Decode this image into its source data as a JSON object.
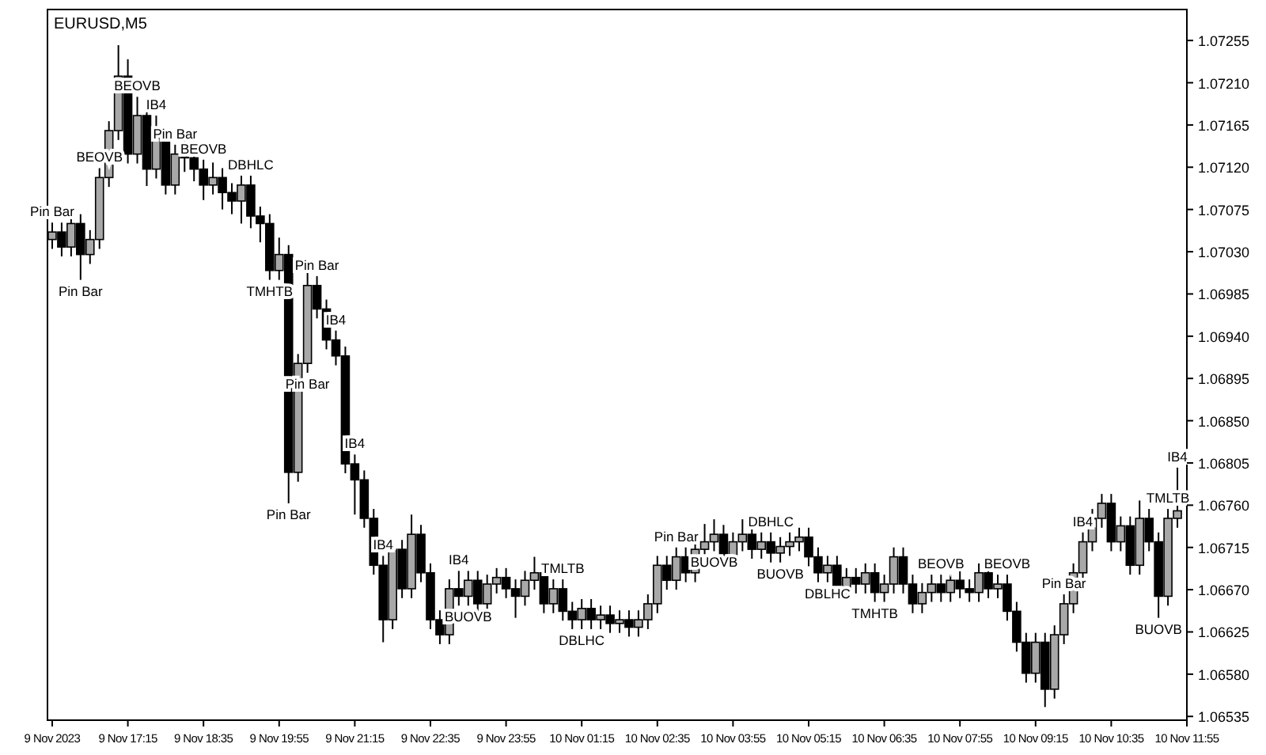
{
  "chart_data": {
    "type": "candlestick",
    "title": "EURUSD,M5",
    "x": [
      "2023-11-09T15:55",
      "2023-11-09T16:05",
      "2023-11-09T16:15",
      "2023-11-09T16:25",
      "2023-11-09T16:35",
      "2023-11-09T16:45",
      "2023-11-09T16:55",
      "2023-11-09T17:05",
      "2023-11-09T17:15",
      "2023-11-09T17:25",
      "2023-11-09T17:35",
      "2023-11-09T17:45",
      "2023-11-09T17:55",
      "2023-11-09T18:05",
      "2023-11-09T18:15",
      "2023-11-09T18:25",
      "2023-11-09T18:35",
      "2023-11-09T18:45",
      "2023-11-09T18:55",
      "2023-11-09T19:05",
      "2023-11-09T19:15",
      "2023-11-09T19:25",
      "2023-11-09T19:35",
      "2023-11-09T19:45",
      "2023-11-09T19:55",
      "2023-11-09T20:05",
      "2023-11-09T20:15",
      "2023-11-09T20:25",
      "2023-11-09T20:35",
      "2023-11-09T20:45",
      "2023-11-09T20:55",
      "2023-11-09T21:05",
      "2023-11-09T21:15",
      "2023-11-09T21:25",
      "2023-11-09T21:35",
      "2023-11-09T21:45",
      "2023-11-09T21:55",
      "2023-11-09T22:05",
      "2023-11-09T22:15",
      "2023-11-09T22:25",
      "2023-11-09T22:35",
      "2023-11-09T22:45",
      "2023-11-09T22:55",
      "2023-11-09T23:05",
      "2023-11-09T23:15",
      "2023-11-09T23:25",
      "2023-11-09T23:35",
      "2023-11-09T23:45",
      "2023-11-09T23:55",
      "2023-11-10T00:05",
      "2023-11-10T00:15",
      "2023-11-10T00:25",
      "2023-11-10T00:35",
      "2023-11-10T00:45",
      "2023-11-10T00:55",
      "2023-11-10T01:05",
      "2023-11-10T01:15",
      "2023-11-10T01:25",
      "2023-11-10T01:35",
      "2023-11-10T01:45",
      "2023-11-10T01:55",
      "2023-11-10T02:05",
      "2023-11-10T02:15",
      "2023-11-10T02:25",
      "2023-11-10T02:35",
      "2023-11-10T02:45",
      "2023-11-10T02:55",
      "2023-11-10T03:05",
      "2023-11-10T03:15",
      "2023-11-10T03:25",
      "2023-11-10T03:35",
      "2023-11-10T03:45",
      "2023-11-10T03:55",
      "2023-11-10T04:05",
      "2023-11-10T04:15",
      "2023-11-10T04:25",
      "2023-11-10T04:35",
      "2023-11-10T04:45",
      "2023-11-10T04:55",
      "2023-11-10T05:05",
      "2023-11-10T05:15",
      "2023-11-10T05:25",
      "2023-11-10T05:35",
      "2023-11-10T05:45",
      "2023-11-10T05:55",
      "2023-11-10T06:05",
      "2023-11-10T06:15",
      "2023-11-10T06:25",
      "2023-11-10T06:35",
      "2023-11-10T06:45",
      "2023-11-10T06:55",
      "2023-11-10T07:05",
      "2023-11-10T07:15",
      "2023-11-10T07:25",
      "2023-11-10T07:35",
      "2023-11-10T07:45",
      "2023-11-10T07:55",
      "2023-11-10T08:05",
      "2023-11-10T08:15",
      "2023-11-10T08:25",
      "2023-11-10T08:35",
      "2023-11-10T08:45",
      "2023-11-10T08:55",
      "2023-11-10T09:05",
      "2023-11-10T09:15",
      "2023-11-10T09:25",
      "2023-11-10T09:35",
      "2023-11-10T09:45",
      "2023-11-10T09:55",
      "2023-11-10T10:05",
      "2023-11-10T10:15",
      "2023-11-10T10:25",
      "2023-11-10T10:35",
      "2023-11-10T10:45",
      "2023-11-10T10:55",
      "2023-11-10T11:05",
      "2023-11-10T11:15",
      "2023-11-10T11:25",
      "2023-11-10T11:35",
      "2023-11-10T11:45"
    ],
    "ohlc": [
      [
        1.07043,
        1.07061,
        1.07033,
        1.07051
      ],
      [
        1.07051,
        1.07061,
        1.07025,
        1.07035
      ],
      [
        1.07035,
        1.0707,
        1.07025,
        1.0706
      ],
      [
        1.0706,
        1.0707,
        1.07,
        1.07027
      ],
      [
        1.07027,
        1.07053,
        1.07017,
        1.07043
      ],
      [
        1.07043,
        1.07119,
        1.07033,
        1.07109
      ],
      [
        1.07109,
        1.07169,
        1.07099,
        1.07159
      ],
      [
        1.07159,
        1.0725,
        1.07149,
        1.07217
      ],
      [
        1.07217,
        1.07235,
        1.07124,
        1.07134
      ],
      [
        1.07134,
        1.07195,
        1.07124,
        1.07175
      ],
      [
        1.07175,
        1.07185,
        1.071,
        1.07118
      ],
      [
        1.07118,
        1.07175,
        1.07108,
        1.07151
      ],
      [
        1.07151,
        1.07161,
        1.07091,
        1.07101
      ],
      [
        1.07101,
        1.07144,
        1.07091,
        1.07134
      ],
      [
        1.07134,
        1.0715,
        1.07115,
        1.0713
      ],
      [
        1.0713,
        1.0714,
        1.07105,
        1.07118
      ],
      [
        1.07118,
        1.07128,
        1.07085,
        1.07101
      ],
      [
        1.07101,
        1.07125,
        1.07091,
        1.07109
      ],
      [
        1.07109,
        1.07119,
        1.07075,
        1.07093
      ],
      [
        1.07093,
        1.07103,
        1.0707,
        1.07084
      ],
      [
        1.07084,
        1.07111,
        1.0706,
        1.07101
      ],
      [
        1.07101,
        1.07111,
        1.07055,
        1.07068
      ],
      [
        1.07068,
        1.07078,
        1.0704,
        1.0706
      ],
      [
        1.0706,
        1.0707,
        1.07,
        1.0701
      ],
      [
        1.0701,
        1.07045,
        1.07,
        1.07027
      ],
      [
        1.07027,
        1.07037,
        1.06762,
        1.06795
      ],
      [
        1.06795,
        1.06921,
        1.06785,
        1.06911
      ],
      [
        1.06911,
        1.0701,
        1.06901,
        1.06994
      ],
      [
        1.06994,
        1.07004,
        1.06959,
        1.06969
      ],
      [
        1.06969,
        1.06979,
        1.06926,
        1.06936
      ],
      [
        1.06936,
        1.06946,
        1.06909,
        1.06919
      ],
      [
        1.06919,
        1.06929,
        1.06794,
        1.06804
      ],
      [
        1.06804,
        1.06814,
        1.0675,
        1.06787
      ],
      [
        1.06787,
        1.06797,
        1.06736,
        1.06746
      ],
      [
        1.06746,
        1.06756,
        1.06686,
        1.06696
      ],
      [
        1.06696,
        1.06706,
        1.06614,
        1.06638
      ],
      [
        1.06638,
        1.06723,
        1.06628,
        1.06713
      ],
      [
        1.06713,
        1.06723,
        1.06661,
        1.06671
      ],
      [
        1.06671,
        1.0675,
        1.06661,
        1.06729
      ],
      [
        1.06729,
        1.06739,
        1.06678,
        1.06688
      ],
      [
        1.06688,
        1.06698,
        1.06628,
        1.06638
      ],
      [
        1.06638,
        1.06648,
        1.06612,
        1.06622
      ],
      [
        1.06622,
        1.06681,
        1.06612,
        1.06671
      ],
      [
        1.06671,
        1.0669,
        1.06653,
        1.06663
      ],
      [
        1.06663,
        1.0669,
        1.06653,
        1.0668
      ],
      [
        1.0668,
        1.0669,
        1.06645,
        1.06655
      ],
      [
        1.06655,
        1.06686,
        1.06645,
        1.06676
      ],
      [
        1.06676,
        1.06693,
        1.06666,
        1.06683
      ],
      [
        1.06683,
        1.06693,
        1.06661,
        1.06671
      ],
      [
        1.06671,
        1.06681,
        1.0664,
        1.06663
      ],
      [
        1.06663,
        1.0669,
        1.06653,
        1.0668
      ],
      [
        1.0668,
        1.06705,
        1.0667,
        1.06688
      ],
      [
        1.06688,
        1.06698,
        1.06645,
        1.06655
      ],
      [
        1.06655,
        1.06681,
        1.06645,
        1.06671
      ],
      [
        1.06671,
        1.06681,
        1.06637,
        1.06647
      ],
      [
        1.06647,
        1.06657,
        1.06628,
        1.06638
      ],
      [
        1.06638,
        1.0666,
        1.06628,
        1.0665
      ],
      [
        1.0665,
        1.0666,
        1.06628,
        1.06638
      ],
      [
        1.06638,
        1.06653,
        1.06628,
        1.06643
      ],
      [
        1.06643,
        1.06653,
        1.06624,
        1.06634
      ],
      [
        1.06634,
        1.06648,
        1.06624,
        1.06638
      ],
      [
        1.06638,
        1.06648,
        1.0662,
        1.0663
      ],
      [
        1.0663,
        1.06648,
        1.0662,
        1.06638
      ],
      [
        1.06638,
        1.06665,
        1.06628,
        1.06655
      ],
      [
        1.06655,
        1.06706,
        1.06645,
        1.06696
      ],
      [
        1.06696,
        1.06706,
        1.0667,
        1.0668
      ],
      [
        1.0668,
        1.06715,
        1.0667,
        1.06705
      ],
      [
        1.06705,
        1.06715,
        1.06678,
        1.06688
      ],
      [
        1.06688,
        1.06723,
        1.06678,
        1.06713
      ],
      [
        1.06713,
        1.0674,
        1.06703,
        1.06721
      ],
      [
        1.06721,
        1.06745,
        1.06711,
        1.06729
      ],
      [
        1.06729,
        1.06739,
        1.06695,
        1.06705
      ],
      [
        1.06705,
        1.06731,
        1.06695,
        1.06721
      ],
      [
        1.06721,
        1.06745,
        1.06711,
        1.06729
      ],
      [
        1.06729,
        1.06739,
        1.06703,
        1.06713
      ],
      [
        1.06713,
        1.06731,
        1.06703,
        1.06721
      ],
      [
        1.06721,
        1.06731,
        1.06699,
        1.06709
      ],
      [
        1.06709,
        1.06726,
        1.06699,
        1.06716
      ],
      [
        1.06716,
        1.06731,
        1.06706,
        1.06721
      ],
      [
        1.06721,
        1.06736,
        1.06711,
        1.06726
      ],
      [
        1.06726,
        1.06736,
        1.06695,
        1.06705
      ],
      [
        1.06705,
        1.06715,
        1.06678,
        1.06688
      ],
      [
        1.06688,
        1.06706,
        1.06678,
        1.06696
      ],
      [
        1.06696,
        1.06706,
        1.06661,
        1.06671
      ],
      [
        1.06671,
        1.06693,
        1.06661,
        1.06683
      ],
      [
        1.06683,
        1.06693,
        1.06666,
        1.06676
      ],
      [
        1.06676,
        1.06698,
        1.06666,
        1.06688
      ],
      [
        1.06688,
        1.06698,
        1.06657,
        1.06667
      ],
      [
        1.06667,
        1.06686,
        1.06657,
        1.06676
      ],
      [
        1.06676,
        1.06715,
        1.06666,
        1.06705
      ],
      [
        1.06705,
        1.06715,
        1.06666,
        1.06676
      ],
      [
        1.06676,
        1.06686,
        1.06645,
        1.06655
      ],
      [
        1.06655,
        1.06677,
        1.06645,
        1.06667
      ],
      [
        1.06667,
        1.06686,
        1.06657,
        1.06676
      ],
      [
        1.06676,
        1.06686,
        1.06657,
        1.06667
      ],
      [
        1.06667,
        1.0669,
        1.06657,
        1.0668
      ],
      [
        1.0668,
        1.0669,
        1.06661,
        1.06671
      ],
      [
        1.06671,
        1.06681,
        1.06657,
        1.06667
      ],
      [
        1.06667,
        1.06698,
        1.06657,
        1.06688
      ],
      [
        1.06688,
        1.06698,
        1.06661,
        1.06671
      ],
      [
        1.06671,
        1.06686,
        1.06661,
        1.06676
      ],
      [
        1.06676,
        1.06686,
        1.06637,
        1.06647
      ],
      [
        1.06647,
        1.06657,
        1.06604,
        1.06614
      ],
      [
        1.06614,
        1.06624,
        1.06571,
        1.06581
      ],
      [
        1.06581,
        1.06624,
        1.06571,
        1.06614
      ],
      [
        1.06614,
        1.06624,
        1.06545,
        1.06564
      ],
      [
        1.06564,
        1.06632,
        1.06554,
        1.06622
      ],
      [
        1.06622,
        1.06665,
        1.06612,
        1.06655
      ],
      [
        1.06655,
        1.06698,
        1.06645,
        1.06688
      ],
      [
        1.06688,
        1.06731,
        1.06678,
        1.06721
      ],
      [
        1.06721,
        1.06756,
        1.06711,
        1.06746
      ],
      [
        1.06746,
        1.06772,
        1.06736,
        1.06762
      ],
      [
        1.06762,
        1.06772,
        1.06711,
        1.06721
      ],
      [
        1.06721,
        1.06748,
        1.06711,
        1.06738
      ],
      [
        1.06738,
        1.06748,
        1.06686,
        1.06696
      ],
      [
        1.06696,
        1.06765,
        1.06686,
        1.06746
      ],
      [
        1.06746,
        1.06756,
        1.06711,
        1.06721
      ],
      [
        1.06721,
        1.06731,
        1.0664,
        1.06663
      ],
      [
        1.06663,
        1.06756,
        1.06653,
        1.06746
      ],
      [
        1.06746,
        1.068,
        1.06736,
        1.06754
      ]
    ],
    "xlim": [
      "2023-11-09T15:50",
      "2023-11-10T11:55"
    ],
    "xticks": [
      {
        "value": "2023-11-09T15:55",
        "label": "9 Nov 2023"
      },
      {
        "value": "2023-11-09T17:15",
        "label": "9 Nov 17:15"
      },
      {
        "value": "2023-11-09T18:35",
        "label": "9 Nov 18:35"
      },
      {
        "value": "2023-11-09T19:55",
        "label": "9 Nov 19:55"
      },
      {
        "value": "2023-11-09T21:15",
        "label": "9 Nov 21:15"
      },
      {
        "value": "2023-11-09T22:35",
        "label": "9 Nov 22:35"
      },
      {
        "value": "2023-11-09T23:55",
        "label": "9 Nov 23:55"
      },
      {
        "value": "2023-11-10T01:15",
        "label": "10 Nov 01:15"
      },
      {
        "value": "2023-11-10T02:35",
        "label": "10 Nov 02:35"
      },
      {
        "value": "2023-11-10T03:55",
        "label": "10 Nov 03:55"
      },
      {
        "value": "2023-11-10T05:15",
        "label": "10 Nov 05:15"
      },
      {
        "value": "2023-11-10T06:35",
        "label": "10 Nov 06:35"
      },
      {
        "value": "2023-11-10T07:55",
        "label": "10 Nov 07:55"
      },
      {
        "value": "2023-11-10T09:15",
        "label": "10 Nov 09:15"
      },
      {
        "value": "2023-11-10T10:35",
        "label": "10 Nov 10:35"
      },
      {
        "value": "2023-11-10T11:55",
        "label": "10 Nov 11:55"
      }
    ],
    "ylim": [
      1.06531,
      1.07288
    ],
    "yticks": [
      {
        "value": 1.06535,
        "label": "1.06535"
      },
      {
        "value": 1.0658,
        "label": "1.06580"
      },
      {
        "value": 1.06625,
        "label": "1.06625"
      },
      {
        "value": 1.0667,
        "label": "1.06670"
      },
      {
        "value": 1.06715,
        "label": "1.06715"
      },
      {
        "value": 1.0676,
        "label": "1.06760"
      },
      {
        "value": 1.06805,
        "label": "1.06805"
      },
      {
        "value": 1.0685,
        "label": "1.06850"
      },
      {
        "value": 1.06895,
        "label": "1.06895"
      },
      {
        "value": 1.0694,
        "label": "1.06940"
      },
      {
        "value": 1.06985,
        "label": "1.06985"
      },
      {
        "value": 1.0703,
        "label": "1.07030"
      },
      {
        "value": 1.07075,
        "label": "1.07075"
      },
      {
        "value": 1.0712,
        "label": "1.07120"
      },
      {
        "value": 1.07165,
        "label": "1.07165"
      },
      {
        "value": 1.0721,
        "label": "1.07210"
      },
      {
        "value": 1.07255,
        "label": "1.07255"
      }
    ],
    "annotations": [
      {
        "text": "Pin Bar",
        "x": "2023-11-09T15:55",
        "y": 1.07061
      },
      {
        "text": "BEOVB",
        "x": "2023-11-09T16:45",
        "y": 1.07119
      },
      {
        "text": "Pin Bar",
        "x": "2023-11-09T16:25",
        "y": 1.07
      },
      {
        "text": "BEOVB",
        "x": "2023-11-09T17:25",
        "y": 1.07195
      },
      {
        "text": "IB4",
        "x": "2023-11-09T17:45",
        "y": 1.07175
      },
      {
        "text": "Pin Bar",
        "x": "2023-11-09T18:05",
        "y": 1.07144
      },
      {
        "text": "BEOVB",
        "x": "2023-11-09T18:35",
        "y": 1.07128
      },
      {
        "text": "DBHLC",
        "x": "2023-11-09T19:25",
        "y": 1.07111
      },
      {
        "text": "TMHTB",
        "x": "2023-11-09T19:45",
        "y": 1.07
      },
      {
        "text": "Pin Bar",
        "x": "2023-11-09T20:35",
        "y": 1.07004
      },
      {
        "text": "IB4",
        "x": "2023-11-09T20:55",
        "y": 1.06946
      },
      {
        "text": "Pin Bar",
        "x": "2023-11-09T20:25",
        "y": 1.06901
      },
      {
        "text": "IB4",
        "x": "2023-11-09T21:15",
        "y": 1.06814
      },
      {
        "text": "IB4",
        "x": "2023-11-09T21:45",
        "y": 1.06706
      },
      {
        "text": "Pin Bar",
        "x": "2023-11-09T20:05",
        "y": 1.06762
      },
      {
        "text": "IB4",
        "x": "2023-11-09T23:05",
        "y": 1.0669
      },
      {
        "text": "BUOVB",
        "x": "2023-11-09T23:15",
        "y": 1.06653
      },
      {
        "text": "TMLTB",
        "x": "2023-11-10T00:55",
        "y": 1.06681
      },
      {
        "text": "DBLHC",
        "x": "2023-11-10T01:15",
        "y": 1.06628
      },
      {
        "text": "Pin Bar",
        "x": "2023-11-10T02:55",
        "y": 1.06715
      },
      {
        "text": "BUOVB",
        "x": "2023-11-10T03:35",
        "y": 1.06711
      },
      {
        "text": "DBHLC",
        "x": "2023-11-10T04:35",
        "y": 1.06731
      },
      {
        "text": "BUOVB",
        "x": "2023-11-10T04:45",
        "y": 1.06699
      },
      {
        "text": "DBLHC",
        "x": "2023-11-10T05:35",
        "y": 1.06678
      },
      {
        "text": "TMHTB",
        "x": "2023-11-10T06:25",
        "y": 1.06657
      },
      {
        "text": "BEOVB",
        "x": "2023-11-10T07:35",
        "y": 1.06686
      },
      {
        "text": "BEOVB",
        "x": "2023-11-10T08:45",
        "y": 1.06686
      },
      {
        "text": "Pin Bar",
        "x": "2023-11-10T09:45",
        "y": 1.06665
      },
      {
        "text": "IB4",
        "x": "2023-11-10T10:05",
        "y": 1.06731
      },
      {
        "text": "BUOVB",
        "x": "2023-11-10T11:25",
        "y": 1.0664
      },
      {
        "text": "TMLTB",
        "x": "2023-11-10T11:35",
        "y": 1.06756
      },
      {
        "text": "IB4",
        "x": "2023-11-10T11:45",
        "y": 1.068
      }
    ]
  }
}
